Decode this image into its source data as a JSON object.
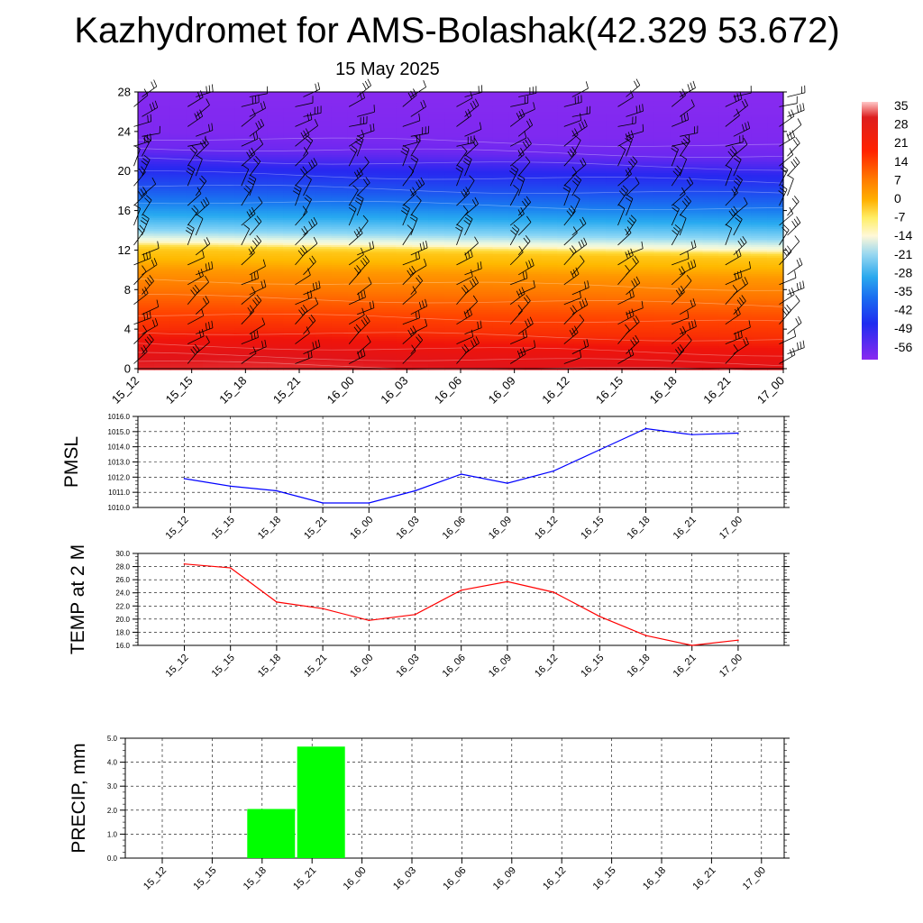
{
  "header": {
    "title": "Kazhydromet for AMS-Bolashak(42.329 53.672)",
    "subtitle": "15 May 2025"
  },
  "chart_data": [
    {
      "type": "heatmap",
      "x": [
        "15_12",
        "15_15",
        "15_18",
        "15_21",
        "16_00",
        "16_03",
        "16_06",
        "16_09",
        "16_12",
        "16_15",
        "16_18",
        "16_21",
        "17_00"
      ],
      "y_ticks": [
        "0",
        "4",
        "8",
        "12",
        "16",
        "20",
        "24",
        "28"
      ],
      "ylim": [
        0,
        28
      ],
      "colorbar": {
        "labels": [
          "35",
          "28",
          "21",
          "14",
          "7",
          "0",
          "-7",
          "-14",
          "-21",
          "-28",
          "-35",
          "-42",
          "-49",
          "-56"
        ],
        "range": [
          -63,
          38
        ]
      },
      "profile": {
        "levels": [
          0,
          2,
          4,
          6,
          8,
          10,
          12,
          13,
          14,
          16,
          18,
          20,
          22,
          24,
          28
        ],
        "values": [
          30,
          24,
          17,
          13,
          8,
          4,
          -3,
          -15,
          -21,
          -30,
          -40,
          -49,
          -55,
          -60,
          -62
        ]
      },
      "wind_barbs": true
    },
    {
      "type": "line",
      "ylabel": "PMSL",
      "x": [
        "15_12",
        "15_15",
        "15_18",
        "15_21",
        "16_00",
        "16_03",
        "16_06",
        "16_09",
        "16_12",
        "16_15",
        "16_18",
        "16_21",
        "17_00"
      ],
      "series": [
        {
          "values": [
            1011.9,
            1011.4,
            1011.1,
            1010.3,
            1010.3,
            1011.1,
            1012.2,
            1011.6,
            1012.4,
            1013.8,
            1015.2,
            1014.8,
            1014.9
          ]
        }
      ],
      "ylim": [
        1010,
        1016
      ],
      "yticks": [
        "1010.0",
        "1011.0",
        "1012.0",
        "1013.0",
        "1014.0",
        "1015.0",
        "1016.0"
      ],
      "color": "#0000ff",
      "grid": true
    },
    {
      "type": "line",
      "ylabel": "TEMP at 2 M",
      "x": [
        "15_12",
        "15_15",
        "15_18",
        "15_21",
        "16_00",
        "16_03",
        "16_06",
        "16_09",
        "16_12",
        "16_15",
        "16_18",
        "16_21",
        "17_00"
      ],
      "series": [
        {
          "values": [
            28.4,
            27.8,
            22.6,
            21.6,
            19.8,
            20.7,
            24.4,
            25.7,
            24.1,
            20.4,
            17.5,
            16.0,
            16.8
          ]
        }
      ],
      "ylim": [
        16,
        30
      ],
      "yticks": [
        "16.0",
        "18.0",
        "20.0",
        "22.0",
        "24.0",
        "26.0",
        "28.0",
        "30.0"
      ],
      "color": "#ff0000",
      "grid": true
    },
    {
      "type": "bar",
      "ylabel": "PRECIP, mm",
      "categories": [
        "15_12",
        "15_15",
        "15_18",
        "15_21",
        "16_00",
        "16_03",
        "16_06",
        "16_09",
        "16_12",
        "16_15",
        "16_18",
        "16_21",
        "17_00"
      ],
      "values": [
        0,
        0,
        2.05,
        4.65,
        0,
        0,
        0,
        0,
        0,
        0,
        0,
        0,
        0
      ],
      "ylim": [
        0,
        5
      ],
      "yticks": [
        "0.0",
        "1.0",
        "2.0",
        "3.0",
        "4.0",
        "5.0"
      ],
      "color": "#00ff00",
      "grid": true
    }
  ]
}
